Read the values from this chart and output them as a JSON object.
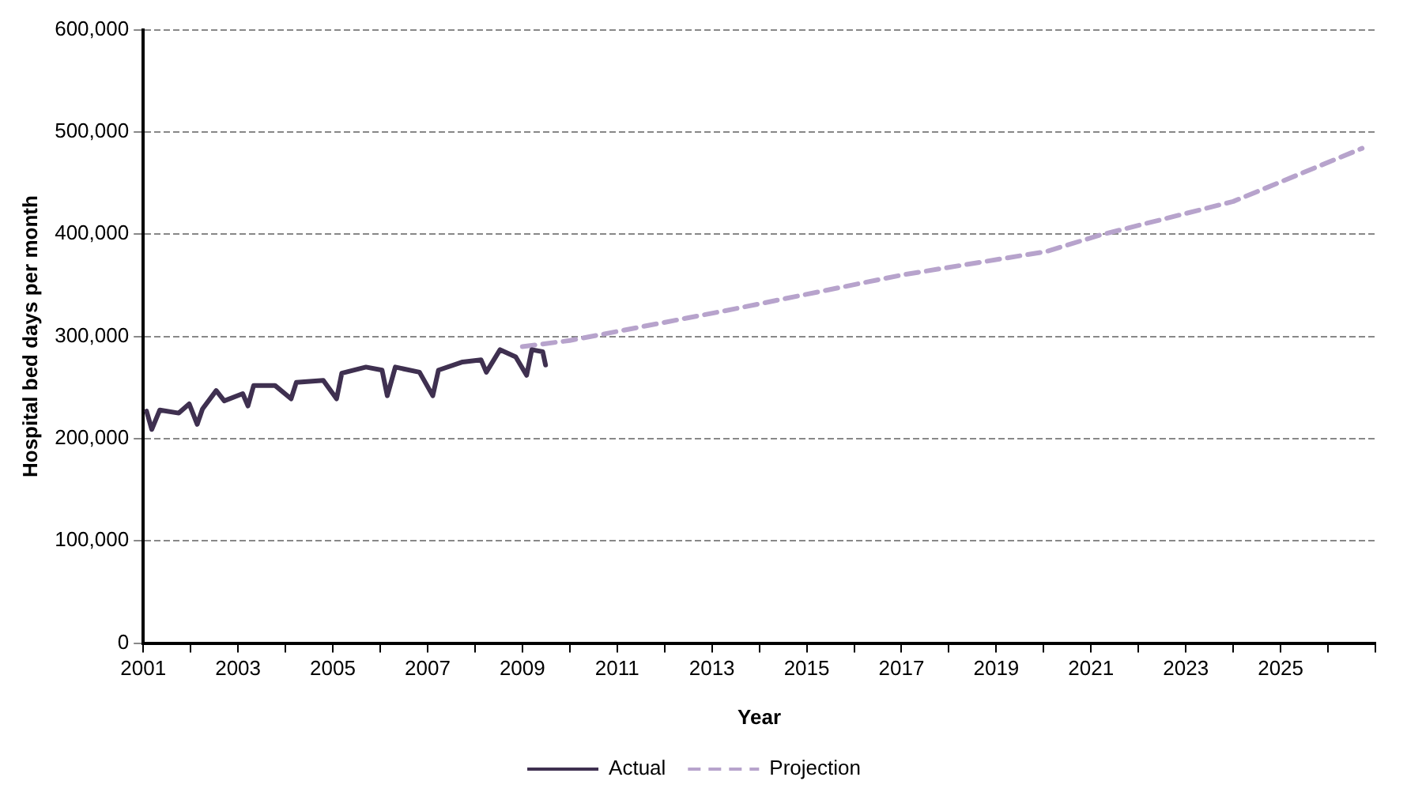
{
  "chart_data": {
    "type": "line",
    "xlabel": "Year",
    "ylabel": "Hospital bed days per month",
    "xlim": [
      2001,
      2027
    ],
    "xticks": [
      2001,
      {
        "value": 2002,
        "label": null
      },
      2003,
      {
        "value": 2004,
        "label": null
      },
      2005,
      {
        "value": 2006,
        "label": null
      },
      2007,
      {
        "value": 2008,
        "label": null
      },
      2009,
      {
        "value": 2010,
        "label": null
      },
      2011,
      {
        "value": 2012,
        "label": null
      },
      2013,
      {
        "value": 2014,
        "label": null
      },
      2015,
      {
        "value": 2016,
        "label": null
      },
      2017,
      {
        "value": 2018,
        "label": null
      },
      2019,
      {
        "value": 2020,
        "label": null
      },
      2021,
      {
        "value": 2022,
        "label": null
      },
      2023,
      {
        "value": 2024,
        "label": null
      },
      2025,
      {
        "value": 2026,
        "label": null
      },
      {
        "value": 2027,
        "label": null
      }
    ],
    "ylim": [
      0,
      600000
    ],
    "yticks": [
      0,
      {
        "value": 100000,
        "label": "100,000"
      },
      {
        "value": 200000,
        "label": "200,000"
      },
      {
        "value": 300000,
        "label": "300,000"
      },
      {
        "value": 400000,
        "label": "400,000"
      },
      {
        "value": 500000,
        "label": "500,000"
      },
      {
        "value": 600000,
        "label": "600,000"
      }
    ],
    "grid": "y",
    "legend": "bottom",
    "marker": "none",
    "series": [
      {
        "name": "Actual",
        "color": "#3f3050",
        "line_style": "solid",
        "x": [
          2001.07,
          2001.18,
          2001.35,
          2001.75,
          2001.97,
          2002.14,
          2002.25,
          2002.54,
          2002.71,
          2003.1,
          2003.21,
          2003.33,
          2003.78,
          2004.12,
          2004.23,
          2004.8,
          2005.08,
          2005.19,
          2005.7,
          2006.04,
          2006.15,
          2006.32,
          2006.83,
          2007.11,
          2007.23,
          2007.74,
          2008.13,
          2008.24,
          2008.53,
          2008.86,
          2009.09,
          2009.2,
          2009.43,
          2009.49
        ],
        "values": [
          227000,
          209000,
          228000,
          225000,
          234000,
          214000,
          229000,
          247000,
          237000,
          244000,
          232000,
          252000,
          252000,
          239000,
          255000,
          257000,
          239000,
          264000,
          270000,
          267000,
          242000,
          270000,
          265000,
          242000,
          267000,
          275000,
          277000,
          265000,
          287000,
          280000,
          262000,
          287000,
          285000,
          272000
        ]
      },
      {
        "name": "Projection",
        "color": "#b7a3cc",
        "line_style": "dashed",
        "x": [
          2009.0,
          2010.0,
          2013.27,
          2017.0,
          2020.05,
          2021.18,
          2024.0,
          2026.72
        ],
        "values": [
          290000,
          296000,
          325000,
          360000,
          383000,
          399000,
          432000,
          484000
        ]
      }
    ]
  }
}
